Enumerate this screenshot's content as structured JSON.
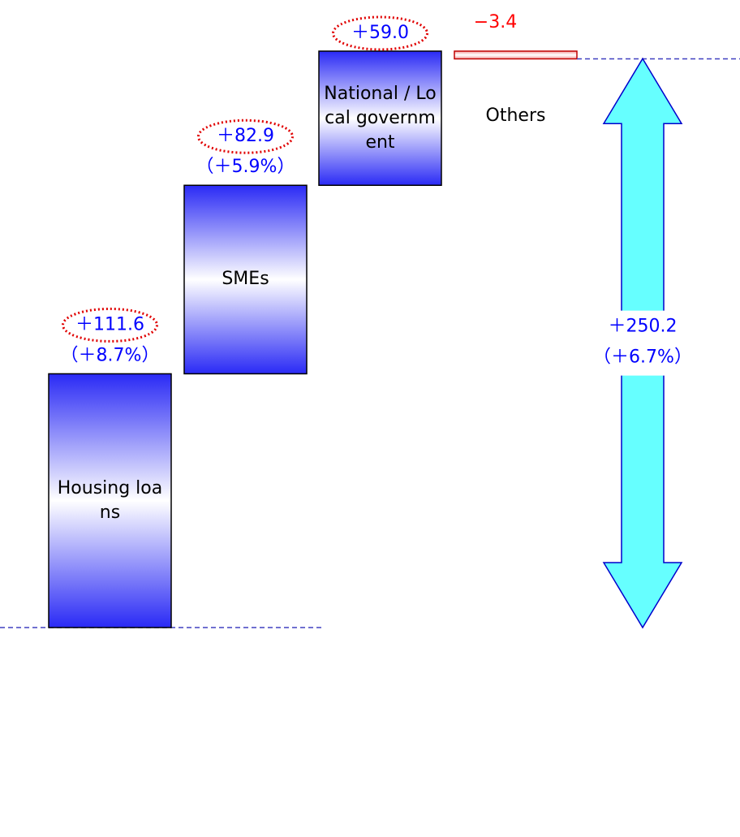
{
  "chart_data": {
    "type": "waterfall",
    "categories": [
      "Housing loans",
      "SMEs",
      "National / Local government",
      "Others"
    ],
    "values": [
      111.6,
      82.9,
      59.0,
      -3.4
    ],
    "value_labels": [
      "＋111.6",
      "＋82.9",
      "＋59.0",
      "−3.4"
    ],
    "percent_labels": [
      "（＋8.7%）",
      "（＋5.9%）",
      null,
      null
    ],
    "total": 250.2,
    "total_label": "＋250.2",
    "total_percent_label": "（＋6.7%）",
    "color": "#2a2af5",
    "negative_color": "#f4a0a0",
    "total_color": "#66ffff",
    "label_color": "#0000ff",
    "negative_label_color": "#ff0000"
  }
}
